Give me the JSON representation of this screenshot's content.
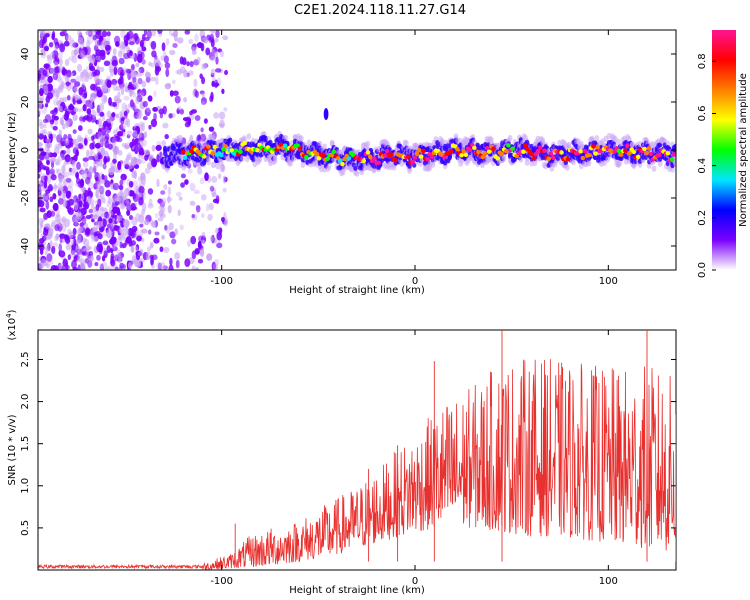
{
  "title": "C2E1.2024.118.11.27.G14",
  "chart_data": [
    {
      "type": "heatmap",
      "xlabel": "Height of straight line (km)",
      "ylabel": "Frequency (Hz)",
      "xlim": [
        -195,
        135
      ],
      "ylim": [
        -50,
        50
      ],
      "xticks": [
        -100,
        0,
        100
      ],
      "yticks": [
        -40,
        -20,
        0,
        20,
        40
      ],
      "xtick_labels": [
        "-100",
        "0",
        "100"
      ],
      "ytick_labels": [
        "-40",
        "-20",
        "0",
        "20",
        "40"
      ],
      "colorbar": {
        "label": "Normalized spectral amplitude",
        "range": [
          0,
          0.92
        ],
        "ticks": [
          0.0,
          0.2,
          0.4,
          0.6,
          0.8
        ],
        "tick_labels": [
          "0.0",
          "0.2",
          "0.4",
          "0.6",
          "0.8"
        ],
        "colors": [
          "#ffffff",
          "#7a00ff",
          "#0000ff",
          "#00e5ff",
          "#00ff00",
          "#ffff00",
          "#ff7f00",
          "#ff0000",
          "#ff1493"
        ]
      },
      "noise_region_x": [
        -195,
        -105
      ],
      "signal": {
        "x_start": -130,
        "x_end": 135,
        "center_freq_points": [
          [
            -130,
            -2
          ],
          [
            -110,
            -1
          ],
          [
            -90,
            0
          ],
          [
            -70,
            1
          ],
          [
            -50,
            -2
          ],
          [
            -35,
            -4
          ],
          [
            -20,
            -3
          ],
          [
            -5,
            -2
          ],
          [
            0,
            -3
          ],
          [
            10,
            -1
          ],
          [
            25,
            0
          ],
          [
            40,
            -1
          ],
          [
            55,
            0
          ],
          [
            70,
            -2
          ],
          [
            85,
            -1
          ],
          [
            100,
            0
          ],
          [
            115,
            -1
          ],
          [
            135,
            -2
          ]
        ],
        "band_halfwidth_hz": 4
      },
      "outlier_points": [
        [
          -46,
          15
        ]
      ]
    },
    {
      "type": "line",
      "xlabel": "Height of straight line (km)",
      "ylabel": "SNR (10 * v/v)",
      "multiplier_label": "(x10⁴)",
      "xlim": [
        -195,
        135
      ],
      "ylim": [
        0,
        2.85
      ],
      "xticks": [
        -100,
        0,
        100
      ],
      "yticks": [
        0.5,
        1.0,
        1.5,
        2.0,
        2.5
      ],
      "xtick_labels": [
        "-100",
        "0",
        "100"
      ],
      "ytick_labels": [
        "0.5",
        "1.0",
        "1.5",
        "2.0",
        "2.5"
      ],
      "color": "#e8312f",
      "envelope": {
        "x": [
          -195,
          -110,
          -95,
          -85,
          -75,
          -60,
          -45,
          -30,
          -15,
          0,
          15,
          30,
          45,
          60,
          75,
          90,
          105,
          120,
          135
        ],
        "upper": [
          0.06,
          0.08,
          0.2,
          0.42,
          0.5,
          0.6,
          0.8,
          1.0,
          1.3,
          1.65,
          2.0,
          2.2,
          2.5,
          2.55,
          2.5,
          2.45,
          2.4,
          2.45,
          2.3
        ],
        "lower": [
          0.0,
          0.0,
          0.02,
          0.03,
          0.05,
          0.1,
          0.15,
          0.25,
          0.35,
          0.45,
          0.5,
          0.5,
          0.45,
          0.4,
          0.4,
          0.35,
          0.3,
          0.25,
          0.2
        ]
      },
      "peaks": [
        [
          -93,
          0.55
        ],
        [
          -24,
          1.2
        ],
        [
          -9,
          1.48
        ],
        [
          10,
          2.48
        ],
        [
          45,
          2.88
        ],
        [
          120,
          2.85
        ],
        [
          135,
          1.85
        ]
      ]
    }
  ]
}
